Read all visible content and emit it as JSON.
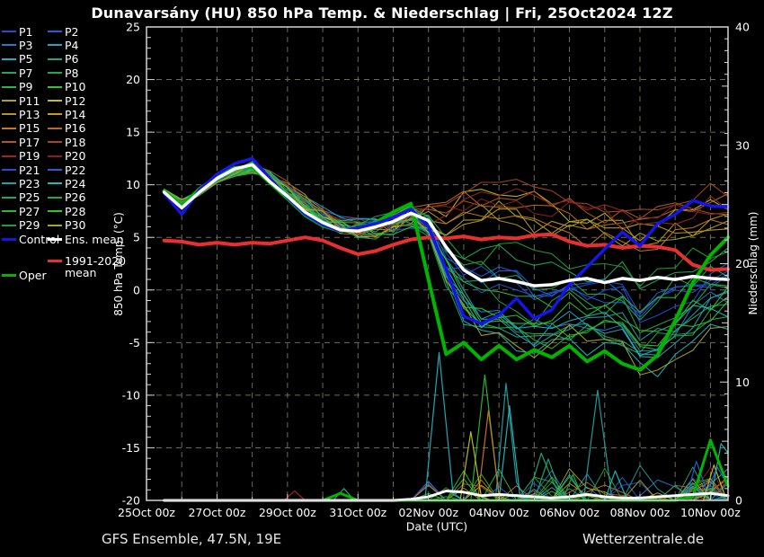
{
  "title": "Dunavarsány  (HU)  850 hPa Temp. & Niederschlag | Fri, 25Oct2024 12Z",
  "footer": {
    "left": "GFS Ensemble, 47.5N, 19E",
    "right": "Wetterzentrale.de"
  },
  "legend": {
    "members": [
      {
        "label": "P1",
        "color": "#2050d0"
      },
      {
        "label": "P2",
        "color": "#2060d8"
      },
      {
        "label": "P3",
        "color": "#2878c8"
      },
      {
        "label": "P4",
        "color": "#28a0c8"
      },
      {
        "label": "P5",
        "color": "#20b0c0"
      },
      {
        "label": "P6",
        "color": "#20a878"
      },
      {
        "label": "P7",
        "color": "#20a860"
      },
      {
        "label": "P8",
        "color": "#1fa84c"
      },
      {
        "label": "P9",
        "color": "#28b838"
      },
      {
        "label": "P10",
        "color": "#30c828"
      },
      {
        "label": "P11",
        "color": "#a8a820"
      },
      {
        "label": "P12",
        "color": "#c0c020"
      },
      {
        "label": "P13",
        "color": "#b09820"
      },
      {
        "label": "P14",
        "color": "#c89820"
      },
      {
        "label": "P15",
        "color": "#c87820"
      },
      {
        "label": "P16",
        "color": "#b86820"
      },
      {
        "label": "P17",
        "color": "#b05820"
      },
      {
        "label": "P18",
        "color": "#a84820"
      },
      {
        "label": "P19",
        "color": "#982820"
      },
      {
        "label": "P20",
        "color": "#882020"
      },
      {
        "label": "P21",
        "color": "#2050d0"
      },
      {
        "label": "P22",
        "color": "#2060d8"
      },
      {
        "label": "P23",
        "color": "#20a0a0"
      },
      {
        "label": "P24",
        "color": "#20b8b8"
      },
      {
        "label": "P25",
        "color": "#20a860"
      },
      {
        "label": "P26",
        "color": "#1fa84c"
      },
      {
        "label": "P27",
        "color": "#28b838"
      },
      {
        "label": "P28",
        "color": "#30c828"
      },
      {
        "label": "P29",
        "color": "#20a030"
      },
      {
        "label": "P30",
        "color": "#a8a820"
      }
    ],
    "control": {
      "label": "Control",
      "color": "#1515e8"
    },
    "ens_mean": {
      "label": "Ens. mean",
      "color": "#ffffff"
    },
    "clim_mean": {
      "label": "1991-2020 mean",
      "color": "#e83030"
    },
    "oper": {
      "label": "Oper",
      "color": "#00b400"
    }
  },
  "chart_data": {
    "type": "line",
    "title": "Dunavarsány  (HU)  850 hPa Temp. & Niederschlag | Fri, 25Oct2024 12Z",
    "xlabel": "Date (UTC)",
    "ylabel_left": "850 hPa Temp. (°C)",
    "ylabel_right": "Niederschlag (mm)",
    "x_unit": "days since 25Oct2024 00z",
    "xlim": [
      0,
      16.5
    ],
    "ylim_left": [
      -20,
      25
    ],
    "ylim_right": [
      0,
      40
    ],
    "grid": "dashed, daily vertical + 5°C horizontal",
    "x_tick_days": [
      0,
      2,
      4,
      6,
      8,
      10,
      12,
      14,
      16
    ],
    "x_tick_labels": [
      "25Oct 00z",
      "27Oct 00z",
      "29Oct 00z",
      "31Oct 00z",
      "02Nov 00z",
      "04Nov 00z",
      "06Nov 00z",
      "08Nov 00z",
      "10Nov 00z"
    ],
    "y_ticks_left": [
      25,
      20,
      15,
      10,
      5,
      0,
      -5,
      -10,
      -15,
      -20
    ],
    "y_ticks_right": [
      0,
      10,
      20,
      30,
      40
    ],
    "t": [
      0.5,
      1,
      1.5,
      2,
      2.5,
      3,
      3.5,
      4,
      4.5,
      5,
      5.5,
      6,
      6.5,
      7,
      7.5,
      8,
      8.5,
      9,
      9.5,
      10,
      10.5,
      11,
      11.5,
      12,
      12.5,
      13,
      13.5,
      14,
      14.5,
      15,
      15.5,
      16,
      16.5
    ],
    "series": {
      "ens_mean": {
        "temp": [
          9.3,
          7.8,
          9.3,
          10.6,
          11.5,
          11.9,
          10.3,
          8.9,
          7.4,
          6.4,
          5.7,
          5.6,
          6.0,
          6.5,
          7.3,
          6.6,
          4.1,
          1.9,
          0.9,
          1.1,
          0.8,
          0.4,
          0.5,
          0.9,
          1.1,
          0.7,
          1.1,
          0.9,
          1.2,
          1.0,
          1.3,
          1.1,
          1.0
        ],
        "precip": [
          0,
          0,
          0,
          0,
          0,
          0,
          0,
          0,
          0,
          0,
          0,
          0,
          0,
          0,
          0.1,
          0.3,
          0.8,
          0.7,
          0.4,
          0.5,
          0.4,
          0.3,
          0.2,
          0.3,
          0.5,
          0.3,
          0.2,
          0.2,
          0.3,
          0.4,
          0.5,
          0.6,
          0.4
        ]
      },
      "control": {
        "temp": [
          9.2,
          7.2,
          9.5,
          11.0,
          12.0,
          12.5,
          10.6,
          8.8,
          7.2,
          6.2,
          5.6,
          5.9,
          6.3,
          6.9,
          7.7,
          6.0,
          2.0,
          -2.5,
          -3.2,
          -2.4,
          -0.8,
          -2.7,
          -1.9,
          0.5,
          2.2,
          3.9,
          5.5,
          4.2,
          6.3,
          7.2,
          8.5,
          8.0,
          7.9
        ]
      },
      "oper": {
        "temp": [
          9.4,
          8.0,
          9.6,
          10.8,
          11.6,
          11.7,
          10.2,
          8.7,
          7.1,
          6.1,
          5.6,
          5.8,
          6.4,
          7.4,
          8.2,
          1.0,
          -6.1,
          -5.0,
          -6.6,
          -5.3,
          -6.6,
          -5.7,
          -6.4,
          -5.3,
          -6.8,
          -5.8,
          -7.0,
          -7.6,
          -6.2,
          -2.9,
          0.7,
          3.3,
          5.0
        ],
        "precip": [
          0,
          0,
          0,
          0,
          0,
          0,
          0,
          0,
          0,
          0,
          0.6,
          0,
          0,
          0,
          0,
          0,
          0,
          0,
          0,
          0,
          0,
          0,
          0,
          0,
          0,
          0,
          0,
          0,
          0,
          0,
          0.3,
          5.1,
          1.2
        ]
      },
      "clim_mean": {
        "temp": [
          4.7,
          4.6,
          4.3,
          4.5,
          4.3,
          4.5,
          4.4,
          4.7,
          5.0,
          4.7,
          4.0,
          3.4,
          3.7,
          4.3,
          4.8,
          5.0,
          4.9,
          5.1,
          4.8,
          5.0,
          4.9,
          5.2,
          5.3,
          4.6,
          4.2,
          4.3,
          4.0,
          4.2,
          4.1,
          3.8,
          2.4,
          1.9,
          2.0
        ]
      }
    },
    "ensemble_envelope": {
      "temp_min": [
        9.1,
        6.9,
        9.0,
        10.2,
        10.8,
        10.0,
        8.8,
        7.0,
        4.5,
        3.0,
        4.0,
        3.8,
        4.2,
        4.5,
        5.0,
        -2.0,
        -6.5,
        -7.0,
        -7.5,
        -7.0,
        -8.0,
        -9.5,
        -7.5,
        -7.0,
        -7.5,
        -6.5,
        -7.5,
        -11.5,
        -9.0,
        -7.0,
        -6.0,
        -5.0,
        -4.5
      ],
      "temp_max": [
        9.6,
        8.6,
        10.0,
        11.4,
        12.4,
        13.0,
        11.8,
        10.5,
        9.2,
        8.0,
        7.0,
        6.8,
        7.2,
        8.0,
        8.6,
        9.5,
        10.5,
        11.8,
        11.8,
        12.0,
        11.5,
        11.0,
        10.5,
        10.0,
        9.5,
        9.0,
        9.0,
        9.0,
        9.5,
        9.8,
        10.2,
        10.8,
        10.5
      ],
      "precip_max_mm": 12.5
    },
    "precip_spikes": [
      {
        "color": "#20b0c0",
        "points": [
          [
            7.9,
            0
          ],
          [
            8.3,
            12.5
          ],
          [
            8.7,
            0.5
          ],
          [
            9.0,
            0
          ]
        ]
      },
      {
        "color": "#28b838",
        "points": [
          [
            9.2,
            0
          ],
          [
            9.6,
            10.6
          ],
          [
            10.0,
            0.4
          ],
          [
            10.3,
            0
          ]
        ]
      },
      {
        "color": "#20a0a0",
        "points": [
          [
            9.9,
            0
          ],
          [
            10.2,
            9.9
          ],
          [
            10.5,
            1.5
          ],
          [
            10.8,
            0
          ]
        ]
      },
      {
        "color": "#20b8b8",
        "points": [
          [
            10.0,
            0
          ],
          [
            10.3,
            8.0
          ],
          [
            10.6,
            0.3
          ],
          [
            10.9,
            0
          ]
        ]
      },
      {
        "color": "#c87820",
        "points": [
          [
            9.4,
            0
          ],
          [
            9.7,
            7.6
          ],
          [
            10.0,
            0.5
          ],
          [
            10.2,
            0
          ]
        ]
      },
      {
        "color": "#c0c020",
        "points": [
          [
            8.9,
            0
          ],
          [
            9.2,
            5.8
          ],
          [
            9.5,
            0.3
          ],
          [
            9.8,
            0
          ]
        ]
      },
      {
        "color": "#20a878",
        "points": [
          [
            10.8,
            0
          ],
          [
            11.2,
            4.0
          ],
          [
            11.5,
            1.8
          ],
          [
            11.8,
            0
          ]
        ]
      },
      {
        "color": "#20a0a0",
        "points": [
          [
            12.4,
            0
          ],
          [
            12.8,
            9.3
          ],
          [
            13.2,
            0.3
          ],
          [
            13.5,
            0
          ]
        ]
      },
      {
        "color": "#20a878",
        "points": [
          [
            11.0,
            0
          ],
          [
            11.4,
            3.5
          ],
          [
            11.8,
            0.2
          ],
          [
            12.0,
            0
          ]
        ]
      },
      {
        "color": "#1fa84c",
        "points": [
          [
            11.8,
            0
          ],
          [
            12.1,
            2.2
          ],
          [
            12.4,
            0
          ]
        ]
      },
      {
        "color": "#20b8b8",
        "points": [
          [
            13.0,
            0
          ],
          [
            13.3,
            2.5
          ],
          [
            13.6,
            0.3
          ],
          [
            13.9,
            0
          ]
        ]
      },
      {
        "color": "#992820",
        "points": [
          [
            3.9,
            0
          ],
          [
            4.2,
            0.8
          ],
          [
            4.5,
            0
          ]
        ]
      },
      {
        "color": "#20a878",
        "points": [
          [
            5.3,
            0
          ],
          [
            5.6,
            1.0
          ],
          [
            5.9,
            0
          ]
        ]
      },
      {
        "color": "#2060d8",
        "points": [
          [
            15.3,
            0
          ],
          [
            15.6,
            3.3
          ],
          [
            15.9,
            0.8
          ],
          [
            16.2,
            2.8
          ],
          [
            16.5,
            1.2
          ]
        ]
      },
      {
        "color": "#c0c020",
        "points": [
          [
            15.8,
            0
          ],
          [
            16.1,
            3.0
          ],
          [
            16.4,
            0.5
          ]
        ]
      },
      {
        "color": "#20b8b8",
        "points": [
          [
            16.0,
            0
          ],
          [
            16.3,
            4.8
          ],
          [
            16.5,
            4.0
          ]
        ]
      }
    ],
    "colors": {
      "background": "#000000",
      "frame": "#d4d4d4",
      "grid": "#6b6b5b",
      "tick_text": "#ffffff",
      "control": "#1515e8",
      "ens_mean": "#ffffff",
      "clim_mean": "#e83030",
      "oper": "#00b400"
    }
  }
}
